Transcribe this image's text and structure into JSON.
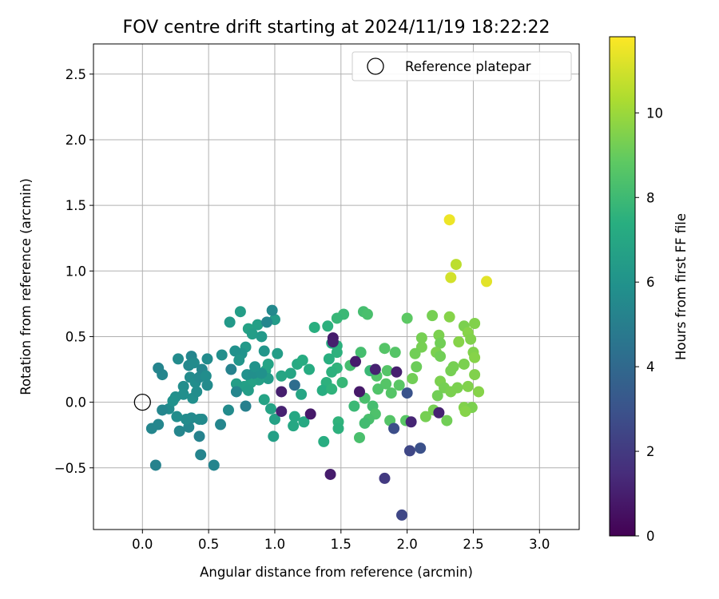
{
  "chart_data": {
    "type": "scatter",
    "title": "FOV centre drift starting at 2024/11/19 18:22:22",
    "xlabel": "Angular distance from reference (arcmin)",
    "ylabel": "Rotation from reference (arcmin)",
    "xlim": [
      -0.37,
      3.3
    ],
    "ylim": [
      -0.97,
      2.73
    ],
    "xticks": [
      0.0,
      0.5,
      1.0,
      1.5,
      2.0,
      2.5,
      3.0
    ],
    "xtick_labels": [
      "0.0",
      "0.5",
      "1.0",
      "1.5",
      "2.0",
      "2.5",
      "3.0"
    ],
    "yticks": [
      -0.5,
      0.0,
      0.5,
      1.0,
      1.5,
      2.0,
      2.5
    ],
    "ytick_labels": [
      "−0.5",
      "0.0",
      "0.5",
      "1.0",
      "1.5",
      "2.0",
      "2.5"
    ],
    "grid": true,
    "legend": {
      "placement": "top-right",
      "label": "Reference platepar"
    },
    "reference_point": [
      0.0,
      0.0
    ],
    "colorbar": {
      "label": "Hours from first FF file",
      "colormap": "viridis",
      "range": [
        0,
        11.8
      ],
      "ticks": [
        0,
        2,
        4,
        6,
        8,
        10
      ],
      "tick_labels": [
        "0",
        "2",
        "4",
        "6",
        "8",
        "10"
      ]
    },
    "points": [
      [
        2.32,
        1.39,
        11.5
      ],
      [
        2.6,
        0.92,
        11.3
      ],
      [
        2.37,
        1.05,
        10.6
      ],
      [
        2.33,
        0.95,
        11.0
      ],
      [
        2.32,
        0.65,
        9.6
      ],
      [
        2.19,
        0.66,
        9.3
      ],
      [
        2.51,
        0.6,
        9.5
      ],
      [
        2.43,
        0.58,
        9.4
      ],
      [
        2.46,
        0.53,
        9.6
      ],
      [
        2.24,
        0.51,
        9.4
      ],
      [
        2.11,
        0.49,
        9.3
      ],
      [
        2.48,
        0.48,
        9.5
      ],
      [
        2.39,
        0.46,
        9.6
      ],
      [
        2.25,
        0.45,
        9.2
      ],
      [
        2.11,
        0.42,
        9.3
      ],
      [
        2.5,
        0.38,
        9.5
      ],
      [
        2.22,
        0.38,
        9.4
      ],
      [
        2.06,
        0.37,
        9.2
      ],
      [
        2.51,
        0.34,
        9.6
      ],
      [
        2.25,
        0.35,
        9.2
      ],
      [
        2.43,
        0.29,
        9.4
      ],
      [
        2.35,
        0.27,
        9.3
      ],
      [
        2.07,
        0.27,
        9.1
      ],
      [
        2.33,
        0.24,
        9.3
      ],
      [
        2.51,
        0.21,
        9.5
      ],
      [
        2.04,
        0.18,
        9.2
      ],
      [
        2.25,
        0.16,
        9.4
      ],
      [
        2.28,
        0.11,
        9.3
      ],
      [
        2.38,
        0.11,
        9.4
      ],
      [
        2.46,
        0.12,
        9.5
      ],
      [
        2.54,
        0.08,
        9.6
      ],
      [
        2.43,
        -0.04,
        9.5
      ],
      [
        2.49,
        -0.04,
        9.4
      ],
      [
        2.2,
        -0.06,
        9.3
      ],
      [
        2.14,
        -0.11,
        9.3
      ],
      [
        2.3,
        -0.14,
        9.2
      ],
      [
        2.44,
        -0.07,
        9.6
      ],
      [
        2.33,
        0.08,
        9.4
      ],
      [
        2.23,
        0.05,
        9.2
      ],
      [
        2.0,
        0.64,
        8.8
      ],
      [
        1.67,
        0.69,
        8.2
      ],
      [
        1.7,
        0.67,
        8.3
      ],
      [
        1.52,
        0.67,
        7.9
      ],
      [
        1.47,
        0.64,
        7.8
      ],
      [
        1.83,
        0.41,
        8.6
      ],
      [
        1.91,
        0.38,
        8.6
      ],
      [
        1.65,
        0.38,
        8.2
      ],
      [
        1.57,
        0.28,
        8.2
      ],
      [
        1.85,
        0.24,
        8.6
      ],
      [
        1.77,
        0.2,
        8.5
      ],
      [
        1.72,
        0.24,
        7.9
      ],
      [
        1.84,
        0.14,
        8.6
      ],
      [
        1.78,
        0.1,
        8.5
      ],
      [
        1.88,
        0.07,
        8.6
      ],
      [
        1.94,
        0.13,
        8.7
      ],
      [
        1.68,
        0.03,
        8.3
      ],
      [
        1.74,
        -0.03,
        8.2
      ],
      [
        1.6,
        -0.03,
        7.9
      ],
      [
        1.76,
        -0.09,
        8.4
      ],
      [
        1.71,
        -0.13,
        8.3
      ],
      [
        1.68,
        -0.16,
        8.1
      ],
      [
        1.87,
        -0.14,
        8.6
      ],
      [
        1.99,
        -0.14,
        8.7
      ],
      [
        1.64,
        -0.27,
        8.3
      ],
      [
        1.47,
        0.43,
        7.5
      ],
      [
        1.43,
        0.45,
        7.3
      ],
      [
        1.47,
        0.38,
        7.5
      ],
      [
        1.41,
        0.33,
        7.4
      ],
      [
        1.47,
        0.26,
        7.6
      ],
      [
        1.43,
        0.23,
        7.5
      ],
      [
        1.39,
        0.15,
        7.5
      ],
      [
        1.36,
        0.09,
        7.3
      ],
      [
        1.43,
        0.1,
        7.6
      ],
      [
        1.51,
        0.15,
        7.8
      ],
      [
        1.48,
        -0.15,
        7.6
      ],
      [
        1.48,
        -0.2,
        7.5
      ],
      [
        1.37,
        -0.3,
        7.3
      ],
      [
        1.4,
        0.58,
        7.5
      ],
      [
        1.3,
        0.57,
        7.4
      ],
      [
        1.17,
        0.29,
        7.1
      ],
      [
        1.12,
        0.22,
        6.9
      ],
      [
        1.26,
        0.25,
        7.2
      ],
      [
        1.21,
        0.32,
        7.2
      ],
      [
        1.05,
        0.2,
        6.9
      ],
      [
        1.15,
        -0.11,
        7.0
      ],
      [
        1.22,
        -0.15,
        7.1
      ],
      [
        1.14,
        -0.18,
        7.0
      ],
      [
        1.2,
        0.06,
        6.9
      ],
      [
        0.97,
        -0.05,
        6.8
      ],
      [
        1.0,
        -0.13,
        6.7
      ],
      [
        0.99,
        -0.26,
        6.6
      ],
      [
        0.92,
        0.02,
        6.8
      ],
      [
        0.93,
        0.24,
        6.9
      ],
      [
        0.95,
        0.29,
        6.8
      ],
      [
        1.02,
        0.37,
        6.5
      ],
      [
        0.95,
        0.18,
        6.4
      ],
      [
        0.88,
        0.17,
        6.6
      ],
      [
        0.82,
        0.15,
        6.7
      ],
      [
        0.77,
        0.12,
        6.6
      ],
      [
        0.71,
        0.14,
        6.5
      ],
      [
        0.8,
        0.09,
        6.5
      ],
      [
        0.87,
        0.59,
        6.6
      ],
      [
        0.8,
        0.56,
        6.7
      ],
      [
        0.74,
        0.69,
        6.5
      ],
      [
        0.83,
        0.52,
        6.5
      ],
      [
        0.92,
        0.39,
        6.1
      ],
      [
        1.0,
        0.63,
        6.4
      ],
      [
        0.98,
        0.7,
        5.5
      ],
      [
        0.94,
        0.61,
        5.4
      ],
      [
        0.9,
        0.5,
        6.3
      ],
      [
        0.78,
        0.42,
        6.3
      ],
      [
        0.75,
        0.37,
        6.0
      ],
      [
        0.7,
        0.39,
        5.9
      ],
      [
        0.66,
        0.61,
        6.3
      ],
      [
        0.73,
        0.32,
        6.1
      ],
      [
        0.6,
        0.36,
        5.8
      ],
      [
        0.79,
        0.21,
        5.9
      ],
      [
        0.84,
        0.22,
        5.8
      ],
      [
        0.9,
        0.22,
        5.9
      ],
      [
        0.85,
        0.27,
        6.0
      ],
      [
        0.67,
        0.25,
        5.2
      ],
      [
        0.71,
        0.08,
        5.4
      ],
      [
        0.78,
        -0.03,
        5.1
      ],
      [
        0.65,
        -0.06,
        5.6
      ],
      [
        0.59,
        -0.17,
        5.4
      ],
      [
        0.54,
        -0.48,
        5.3
      ],
      [
        0.44,
        -0.4,
        5.3
      ],
      [
        0.43,
        -0.26,
        5.2
      ],
      [
        0.45,
        -0.13,
        5.5
      ],
      [
        0.37,
        -0.12,
        5.5
      ],
      [
        0.35,
        -0.19,
        5.4
      ],
      [
        0.28,
        -0.22,
        5.4
      ],
      [
        0.33,
        -0.13,
        5.6
      ],
      [
        0.26,
        -0.11,
        5.7
      ],
      [
        0.2,
        -0.05,
        5.6
      ],
      [
        0.15,
        -0.06,
        5.4
      ],
      [
        0.12,
        -0.17,
        5.4
      ],
      [
        0.07,
        -0.2,
        5.4
      ],
      [
        0.1,
        -0.48,
        5.2
      ],
      [
        0.15,
        0.21,
        5.4
      ],
      [
        0.12,
        0.26,
        5.3
      ],
      [
        0.27,
        0.33,
        5.6
      ],
      [
        0.37,
        0.35,
        5.4
      ],
      [
        0.35,
        0.28,
        5.5
      ],
      [
        0.39,
        0.3,
        5.6
      ],
      [
        0.36,
        0.19,
        5.6
      ],
      [
        0.4,
        0.15,
        5.7
      ],
      [
        0.43,
        0.19,
        5.5
      ],
      [
        0.45,
        0.25,
        5.4
      ],
      [
        0.49,
        0.33,
        5.6
      ],
      [
        0.48,
        0.2,
        5.7
      ],
      [
        0.49,
        0.13,
        5.6
      ],
      [
        0.38,
        0.03,
        5.8
      ],
      [
        0.31,
        0.12,
        5.7
      ],
      [
        0.31,
        0.06,
        5.8
      ],
      [
        0.25,
        0.04,
        5.8
      ],
      [
        0.23,
        0.01,
        5.9
      ],
      [
        0.41,
        0.08,
        5.7
      ],
      [
        0.43,
        -0.13,
        5.6
      ],
      [
        1.44,
        0.49,
        0.9
      ],
      [
        1.44,
        0.46,
        1.0
      ],
      [
        1.61,
        0.31,
        0.9
      ],
      [
        1.76,
        0.25,
        1.1
      ],
      [
        1.92,
        0.23,
        1.0
      ],
      [
        1.64,
        0.08,
        0.8
      ],
      [
        1.05,
        0.08,
        1.0
      ],
      [
        1.05,
        -0.07,
        1.1
      ],
      [
        1.27,
        -0.09,
        0.8
      ],
      [
        2.03,
        -0.15,
        1.2
      ],
      [
        2.24,
        -0.08,
        1.1
      ],
      [
        1.42,
        -0.55,
        0.9
      ],
      [
        1.83,
        -0.58,
        2.0
      ],
      [
        1.96,
        -0.86,
        2.5
      ],
      [
        2.02,
        -0.37,
        2.5
      ],
      [
        2.1,
        -0.35,
        2.9
      ],
      [
        1.9,
        -0.2,
        2.8
      ],
      [
        2.0,
        0.07,
        3.0
      ],
      [
        1.15,
        0.13,
        4.2
      ]
    ]
  }
}
